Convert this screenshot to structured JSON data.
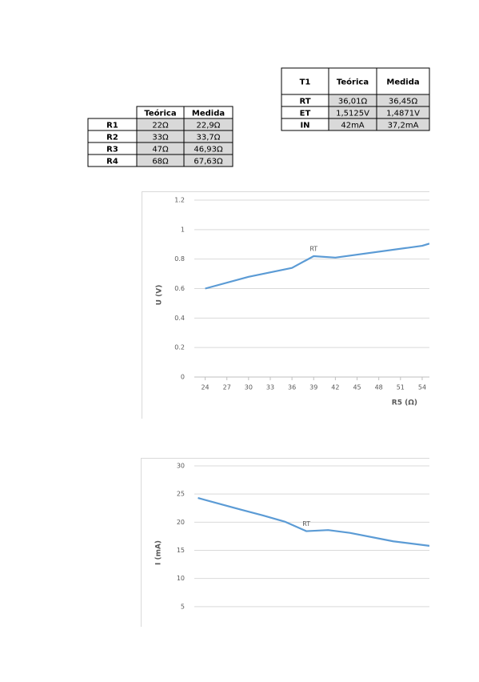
{
  "tables": [
    {
      "header": [
        "Teórica",
        "Medida"
      ],
      "rows": [
        [
          "R1",
          "22Ω",
          "22,9Ω"
        ],
        [
          "R2",
          "33Ω",
          "33,7Ω"
        ],
        [
          "R3",
          "47Ω",
          "46,93Ω"
        ],
        [
          "R4",
          "68Ω",
          "67,63Ω"
        ]
      ]
    },
    {
      "header": [
        "T1",
        "Teórica",
        "Medida"
      ],
      "rows": [
        [
          "RT",
          "36,01Ω",
          "36,45Ω"
        ],
        [
          "ET",
          "1,5125V",
          "1,4871V"
        ],
        [
          "IN",
          "42mA",
          "37,2mA"
        ]
      ]
    }
  ],
  "chart_data": [
    {
      "type": "line",
      "x_label": "R5 (Ω)",
      "y_label": "U (V)",
      "x": [
        24,
        30,
        36,
        39,
        42,
        54,
        55
      ],
      "values": [
        0.6,
        0.68,
        0.74,
        0.82,
        0.81,
        0.89,
        0.905
      ],
      "color": "#5b9bd5",
      "xlim": [
        22.5,
        55
      ],
      "xticks": [
        24,
        27,
        30,
        33,
        36,
        39,
        42,
        45,
        48,
        51,
        54
      ],
      "ylim": [
        0,
        1.2
      ],
      "yticks": [
        0,
        0.2,
        0.4,
        0.6,
        0.8,
        1,
        1.2
      ],
      "grid": true,
      "annotations": [
        {
          "text": "RT",
          "x": 39,
          "y": 0.82
        }
      ]
    },
    {
      "type": "line",
      "y_label": "I (mA)",
      "x": [
        23,
        29,
        32,
        35,
        38,
        41,
        44,
        50,
        55
      ],
      "values": [
        24.3,
        22.2,
        21.2,
        20.1,
        18.4,
        18.6,
        18.1,
        16.6,
        15.8
      ],
      "color": "#5b9bd5",
      "xlim": [
        22.5,
        55
      ],
      "ylim": [
        0,
        30
      ],
      "yticks": [
        5,
        10,
        15,
        20,
        25,
        30
      ],
      "grid": true,
      "annotations": [
        {
          "text": "RT",
          "x": 38,
          "y": 18.4
        }
      ]
    }
  ]
}
